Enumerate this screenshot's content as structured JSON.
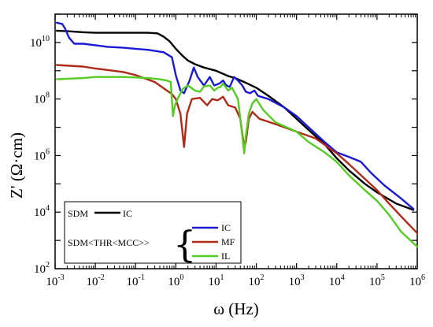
{
  "chart_data": {
    "type": "line",
    "xlabel": "ω (Hz)",
    "ylabel": "Z' (Ω·cm)",
    "x_scale": "log",
    "y_scale": "log",
    "xlim": [
      0.001,
      1000000
    ],
    "ylim": [
      100,
      100000000000
    ],
    "grid": false,
    "x_ticks": [
      {
        "base": "10",
        "exp": "-3"
      },
      {
        "base": "10",
        "exp": "-2"
      },
      {
        "base": "10",
        "exp": "-1"
      },
      {
        "base": "10",
        "exp": "0"
      },
      {
        "base": "10",
        "exp": "1"
      },
      {
        "base": "10",
        "exp": "2"
      },
      {
        "base": "10",
        "exp": "3"
      },
      {
        "base": "10",
        "exp": "4"
      },
      {
        "base": "10",
        "exp": "5"
      },
      {
        "base": "10",
        "exp": "6"
      }
    ],
    "y_ticks": [
      {
        "base": "10",
        "exp": "2"
      },
      {
        "base": "10",
        "exp": "4"
      },
      {
        "base": "10",
        "exp": "6"
      },
      {
        "base": "10",
        "exp": "8"
      },
      {
        "base": "10",
        "exp": "10"
      }
    ],
    "legend": {
      "position": "bottom-left",
      "group1_label": "SDM",
      "group2_label": "SDM<THR<MCC>>"
    },
    "series": [
      {
        "name": "IC",
        "group": 1,
        "color": "#000000",
        "points": [
          [
            0.0011,
            26000000000.0
          ],
          [
            0.002,
            25000000000.0
          ],
          [
            0.005,
            23000000000.0
          ],
          [
            0.01,
            22000000000.0
          ],
          [
            0.02,
            22000000000.0
          ],
          [
            0.05,
            22000000000.0
          ],
          [
            0.1,
            22000000000.0
          ],
          [
            0.2,
            22000000000.0
          ],
          [
            0.35,
            21000000000.0
          ],
          [
            0.5,
            16000000000.0
          ],
          [
            0.7,
            11000000000.0
          ],
          [
            1.0,
            6000000000.0
          ],
          [
            1.5,
            3300000000.0
          ],
          [
            2,
            2300000000.0
          ],
          [
            3,
            1700000000.0
          ],
          [
            5,
            1300000000.0
          ],
          [
            10,
            1000000000.0
          ],
          [
            20,
            650000000.0
          ],
          [
            30,
            550000000.0
          ],
          [
            50,
            400000000.0
          ],
          [
            100,
            250000000.0
          ],
          [
            200,
            130000000.0
          ],
          [
            500,
            50000000.0
          ],
          [
            1000,
            20000000.0
          ],
          [
            2000,
            8000000.0
          ],
          [
            5000,
            2500000.0
          ],
          [
            10000,
            800000.0
          ],
          [
            20000,
            300000.0
          ],
          [
            50000,
            100000.0
          ],
          [
            100000,
            50000.0
          ],
          [
            300000,
            20000.0
          ],
          [
            800000,
            12000.0
          ]
        ]
      },
      {
        "name": "IC",
        "group": 2,
        "color": "#1a1ad6",
        "points": [
          [
            0.0011,
            50000000000.0
          ],
          [
            0.0015,
            45000000000.0
          ],
          [
            0.0018,
            30000000000.0
          ],
          [
            0.0022,
            15000000000.0
          ],
          [
            0.003,
            9000000000.0
          ],
          [
            0.005,
            9000000000.0
          ],
          [
            0.01,
            8000000000.0
          ],
          [
            0.02,
            7000000000.0
          ],
          [
            0.05,
            6500000000.0
          ],
          [
            0.1,
            6000000000.0
          ],
          [
            0.2,
            5500000000.0
          ],
          [
            0.5,
            4500000000.0
          ],
          [
            0.8,
            3000000000.0
          ],
          [
            1.0,
            700000000.0
          ],
          [
            1.3,
            200000000.0
          ],
          [
            1.6,
            160000000.0
          ],
          [
            2.2,
            450000000.0
          ],
          [
            2.8,
            1300000000.0
          ],
          [
            3.5,
            600000000.0
          ],
          [
            5,
            300000000.0
          ],
          [
            7,
            600000000.0
          ],
          [
            9,
            300000000.0
          ],
          [
            12,
            350000000.0
          ],
          [
            15,
            450000000.0
          ],
          [
            18,
            300000000.0
          ],
          [
            22,
            270000000.0
          ],
          [
            28,
            600000000.0
          ],
          [
            35,
            450000000.0
          ],
          [
            45,
            300000000.0
          ],
          [
            55,
            180000000.0
          ],
          [
            70,
            160000000.0
          ],
          [
            90,
            200000000.0
          ],
          [
            110,
            130000000.0
          ],
          [
            200,
            100000000.0
          ],
          [
            500,
            50000000.0
          ],
          [
            1000,
            25000000.0
          ],
          [
            2000,
            10000000.0
          ],
          [
            5000,
            3000000.0
          ],
          [
            10000,
            1300000.0
          ],
          [
            20000,
            900000.0
          ],
          [
            40000,
            600000.0
          ],
          [
            70000,
            250000.0
          ],
          [
            150000,
            90000.0
          ],
          [
            400000,
            30000.0
          ],
          [
            800000,
            13000.0
          ]
        ]
      },
      {
        "name": "MF",
        "group": 2,
        "color": "#b02a1a",
        "points": [
          [
            0.0011,
            1600000000.0
          ],
          [
            0.005,
            1400000000.0
          ],
          [
            0.01,
            1200000000.0
          ],
          [
            0.05,
            900000000.0
          ],
          [
            0.1,
            700000000.0
          ],
          [
            0.3,
            400000000.0
          ],
          [
            0.6,
            200000000.0
          ],
          [
            0.8,
            150000000.0
          ],
          [
            1.0,
            100000000.0
          ],
          [
            1.3,
            30000000.0
          ],
          [
            1.6,
            2000000.0
          ],
          [
            1.9,
            30000000.0
          ],
          [
            2.5,
            100000000.0
          ],
          [
            4,
            110000000.0
          ],
          [
            6,
            60000000.0
          ],
          [
            8,
            100000000.0
          ],
          [
            11,
            90000000.0
          ],
          [
            15,
            120000000.0
          ],
          [
            20,
            60000000.0
          ],
          [
            30,
            50000000.0
          ],
          [
            40,
            20000000.0
          ],
          [
            50,
            2000000.0
          ],
          [
            55,
            3000000.0
          ],
          [
            65,
            20000000.0
          ],
          [
            80,
            35000000.0
          ],
          [
            120,
            20000000.0
          ],
          [
            300,
            13000000.0
          ],
          [
            1000,
            7000000.0
          ],
          [
            3000,
            4000000.0
          ],
          [
            6000,
            2000000.0
          ],
          [
            10000,
            1200000.0
          ],
          [
            20000,
            500000.0
          ],
          [
            50000,
            150000.0
          ],
          [
            100000,
            60000.0
          ],
          [
            200000,
            20000.0
          ],
          [
            400000,
            7000.0
          ],
          [
            1000000,
            1800.0
          ]
        ]
      },
      {
        "name": "IL",
        "group": 2,
        "color": "#55cc22",
        "points": [
          [
            0.0011,
            500000000.0
          ],
          [
            0.005,
            550000000.0
          ],
          [
            0.01,
            600000000.0
          ],
          [
            0.05,
            600000000.0
          ],
          [
            0.1,
            580000000.0
          ],
          [
            0.2,
            550000000.0
          ],
          [
            0.4,
            500000000.0
          ],
          [
            0.6,
            450000000.0
          ],
          [
            0.75,
            400000000.0
          ],
          [
            0.85,
            25000000.0
          ],
          [
            0.95,
            60000000.0
          ],
          [
            1.1,
            100000000.0
          ],
          [
            1.5,
            230000000.0
          ],
          [
            2,
            300000000.0
          ],
          [
            3,
            200000000.0
          ],
          [
            4,
            180000000.0
          ],
          [
            5,
            280000000.0
          ],
          [
            7,
            300000000.0
          ],
          [
            9,
            200000000.0
          ],
          [
            11,
            250000000.0
          ],
          [
            13,
            270000000.0
          ],
          [
            15,
            350000000.0
          ],
          [
            20,
            200000000.0
          ],
          [
            25,
            250000000.0
          ],
          [
            35,
            100000000.0
          ],
          [
            45,
            5000000.0
          ],
          [
            50,
            1200000.0
          ],
          [
            55,
            5000000.0
          ],
          [
            65,
            30000000.0
          ],
          [
            80,
            70000000.0
          ],
          [
            100,
            100000000.0
          ],
          [
            150,
            40000000.0
          ],
          [
            300,
            15000000.0
          ],
          [
            1000,
            7000000.0
          ],
          [
            2000,
            3000000.0
          ],
          [
            5000,
            1300000.0
          ],
          [
            10000,
            600000.0
          ],
          [
            20000,
            200000.0
          ],
          [
            50000,
            60000.0
          ],
          [
            100000,
            25000.0
          ],
          [
            200000,
            8000.0
          ],
          [
            400000,
            2000.0
          ],
          [
            1000000,
            600.0
          ]
        ]
      }
    ]
  }
}
